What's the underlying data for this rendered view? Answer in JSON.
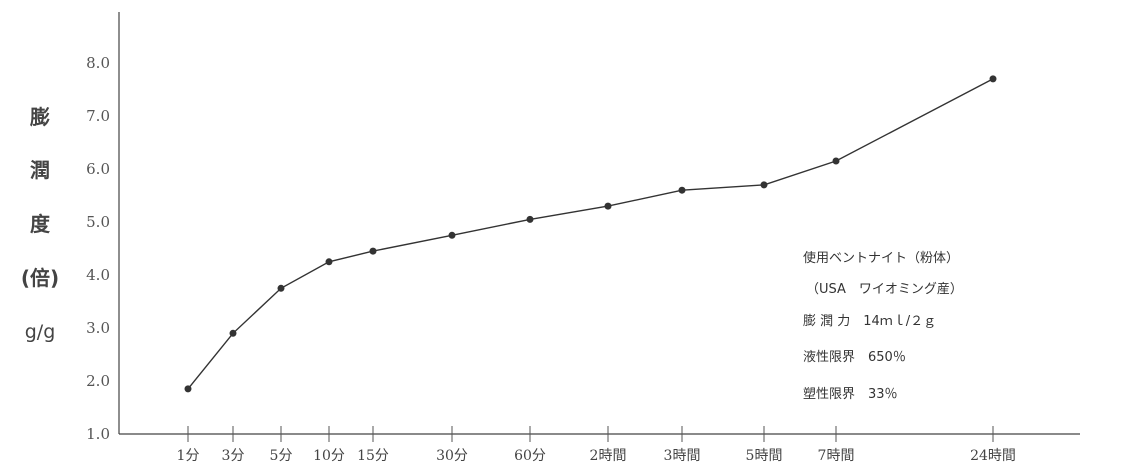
{
  "chart_data": {
    "type": "line",
    "title": "",
    "ylabel": "膨潤度(倍)",
    "yunit": "g/g",
    "ylim": [
      1.0,
      8.0
    ],
    "yticks": [
      "1.0",
      "2.0",
      "3.0",
      "4.0",
      "5.0",
      "6.0",
      "7.0",
      "8.0"
    ],
    "categories": [
      "1分",
      "3分",
      "5分",
      "10分",
      "15分",
      "30分",
      "60分",
      "2時間",
      "3時間",
      "5時間",
      "7時間",
      "24時間"
    ],
    "values": [
      1.85,
      2.9,
      3.75,
      4.25,
      4.45,
      4.75,
      5.05,
      5.3,
      5.6,
      5.7,
      6.15,
      7.7
    ],
    "notes": [
      "使用ベントナイト（粉体）",
      "（USA　ワイオミング産）",
      "膨 潤 力　14ｍｌ/２ｇ",
      "液性限界　650％",
      "塑性限界　33％"
    ],
    "grid": false,
    "line_color": "#333333"
  }
}
